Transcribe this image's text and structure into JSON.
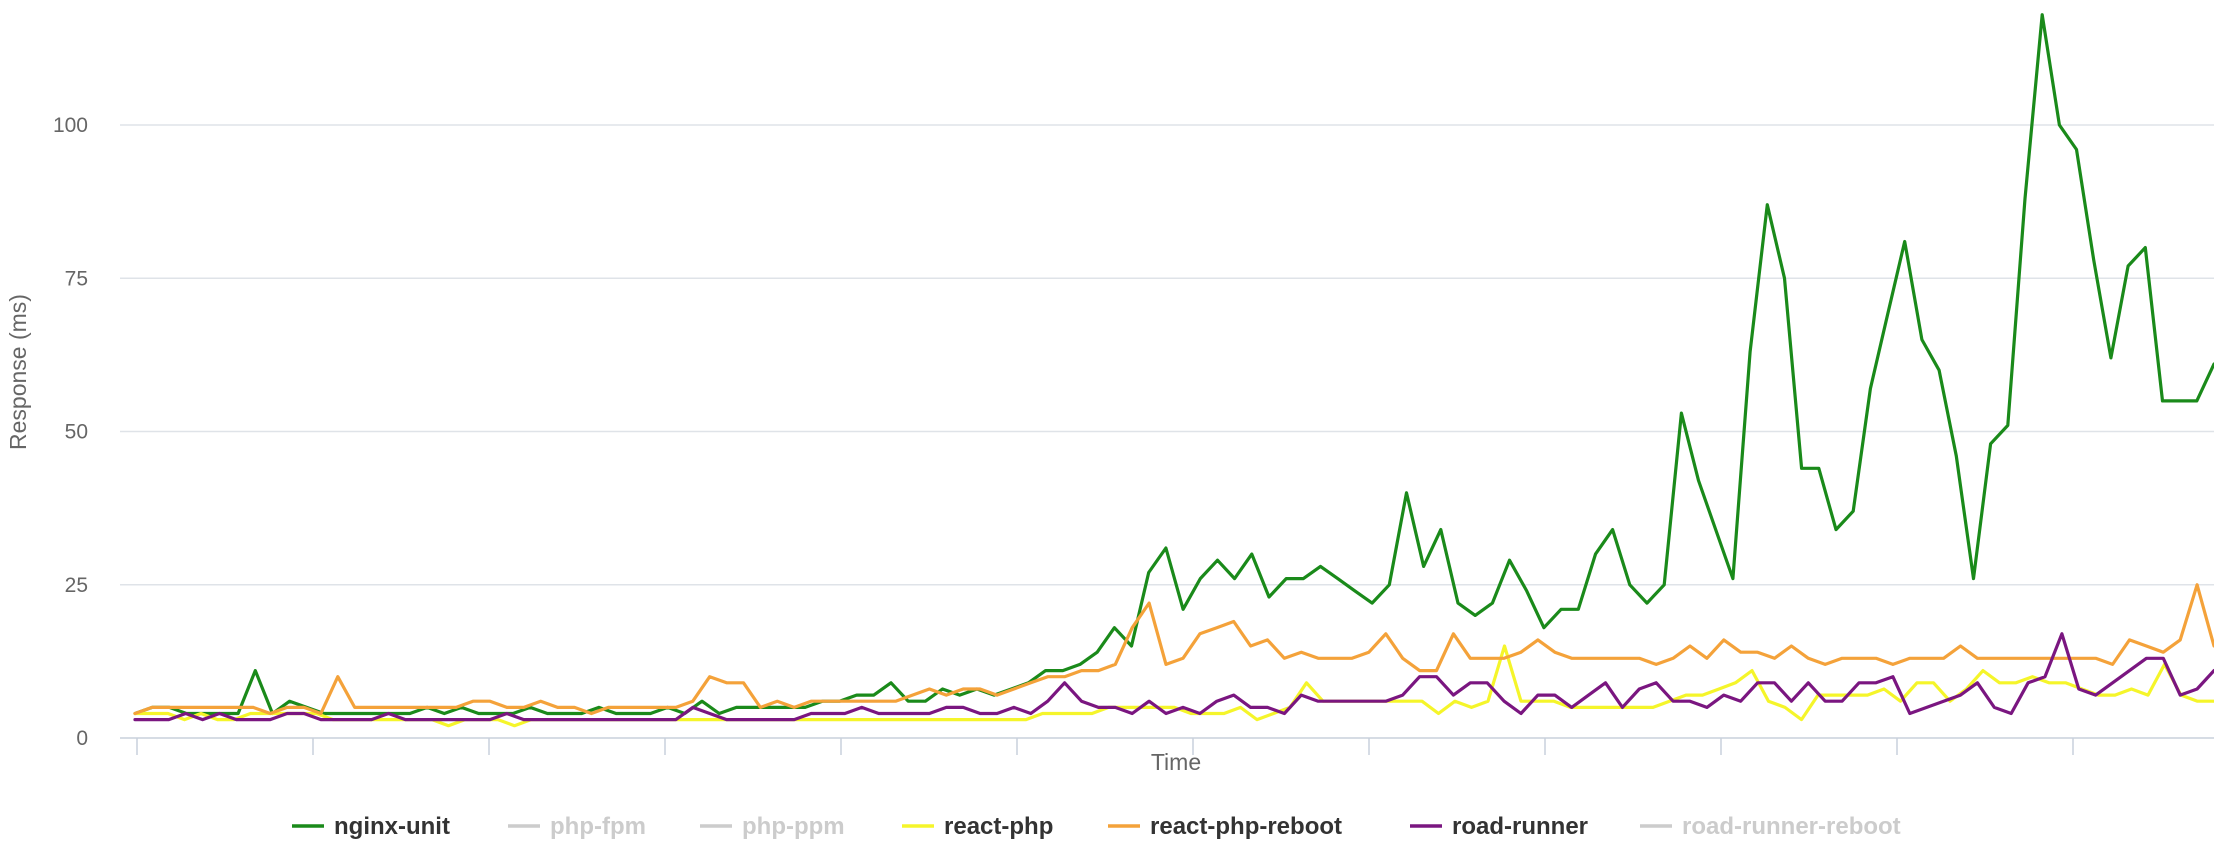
{
  "chart_data": {
    "type": "line",
    "title": "",
    "xlabel": "Time",
    "ylabel": "Response (ms)",
    "ylim": [
      0,
      120
    ],
    "yticks": [
      0,
      25,
      50,
      75,
      100
    ],
    "ytick_labels": [
      "0",
      "25",
      "50",
      "75",
      "100"
    ],
    "grid": true,
    "legend_position": "bottom",
    "series": [
      {
        "name": "nginx-unit",
        "color": "#1a8a1a",
        "visible": true,
        "values": [
          4,
          5,
          5,
          4,
          4,
          4,
          4,
          11,
          4,
          6,
          5,
          4,
          4,
          4,
          4,
          4,
          4,
          5,
          4,
          5,
          4,
          4,
          4,
          5,
          4,
          4,
          4,
          5,
          4,
          4,
          4,
          5,
          4,
          6,
          4,
          5,
          5,
          5,
          5,
          5,
          6,
          6,
          7,
          7,
          9,
          6,
          6,
          8,
          7,
          8,
          7,
          8,
          9,
          11,
          11,
          12,
          14,
          18,
          15,
          27,
          31,
          21,
          26,
          29,
          26,
          30,
          23,
          26,
          26,
          28,
          26,
          24,
          22,
          25,
          40,
          28,
          34,
          22,
          20,
          22,
          29,
          24,
          18,
          21,
          21,
          30,
          34,
          25,
          22,
          25,
          53,
          42,
          34,
          26,
          63,
          87,
          75,
          44,
          44,
          34,
          37,
          57,
          69,
          81,
          65,
          60,
          46,
          26,
          48,
          51,
          88,
          118,
          100,
          96,
          78,
          62,
          77,
          80,
          55,
          55,
          55,
          61
        ]
      },
      {
        "name": "php-fpm",
        "color": "#cccccc",
        "visible": false,
        "values": []
      },
      {
        "name": "php-ppm",
        "color": "#cccccc",
        "visible": false,
        "values": []
      },
      {
        "name": "react-php",
        "color": "#f5f52a",
        "visible": true,
        "values": [
          4,
          4,
          4,
          3,
          4,
          3,
          3,
          4,
          4,
          4,
          4,
          4,
          3,
          3,
          3,
          3,
          3,
          3,
          3,
          2,
          3,
          3,
          3,
          2,
          3,
          3,
          3,
          3,
          3,
          3,
          3,
          3,
          3,
          3,
          3,
          3,
          3,
          3,
          3,
          3,
          3,
          3,
          3,
          3,
          3,
          3,
          3,
          3,
          3,
          3,
          3,
          3,
          3,
          3,
          3,
          4,
          4,
          4,
          4,
          5,
          5,
          5,
          5,
          5,
          4,
          4,
          4,
          5,
          3,
          4,
          5,
          9,
          6,
          6,
          6,
          6,
          6,
          6,
          6,
          4,
          6,
          5,
          6,
          15,
          6,
          6,
          6,
          5,
          5,
          5,
          5,
          5,
          5,
          6,
          7,
          7,
          8,
          9,
          11,
          6,
          5,
          3,
          7,
          7,
          7,
          7,
          8,
          6,
          9,
          9,
          6,
          8,
          11,
          9,
          9,
          10,
          9,
          9,
          8,
          7,
          7,
          8,
          7,
          12,
          7,
          6,
          6
        ]
      },
      {
        "name": "react-php-reboot",
        "color": "#f4a23a",
        "visible": true,
        "values": [
          4,
          5,
          5,
          5,
          5,
          5,
          5,
          5,
          4,
          5,
          5,
          4,
          10,
          5,
          5,
          5,
          5,
          5,
          5,
          5,
          6,
          6,
          5,
          5,
          6,
          5,
          5,
          4,
          5,
          5,
          5,
          5,
          5,
          6,
          10,
          9,
          9,
          5,
          6,
          5,
          6,
          6,
          6,
          6,
          6,
          6,
          7,
          8,
          7,
          8,
          8,
          7,
          8,
          9,
          10,
          10,
          11,
          11,
          12,
          18,
          22,
          12,
          13,
          17,
          18,
          19,
          15,
          16,
          13,
          14,
          13,
          13,
          13,
          14,
          17,
          13,
          11,
          11,
          17,
          13,
          13,
          13,
          14,
          16,
          14,
          13,
          13,
          13,
          13,
          13,
          12,
          13,
          15,
          13,
          16,
          14,
          14,
          13,
          15,
          13,
          12,
          13,
          13,
          13,
          12,
          13,
          13,
          13,
          15,
          13,
          13,
          13,
          13,
          13,
          13,
          13,
          13,
          12,
          16,
          15,
          14,
          16,
          25,
          15
        ]
      },
      {
        "name": "road-runner",
        "color": "#7a1680",
        "visible": true,
        "values": [
          3,
          3,
          3,
          4,
          3,
          4,
          3,
          3,
          3,
          4,
          4,
          3,
          3,
          3,
          3,
          4,
          3,
          3,
          3,
          3,
          3,
          3,
          4,
          3,
          3,
          3,
          3,
          3,
          3,
          3,
          3,
          3,
          3,
          5,
          4,
          3,
          3,
          3,
          3,
          3,
          4,
          4,
          4,
          5,
          4,
          4,
          4,
          4,
          5,
          5,
          4,
          4,
          5,
          4,
          6,
          9,
          6,
          5,
          5,
          4,
          6,
          4,
          5,
          4,
          6,
          7,
          5,
          5,
          4,
          7,
          6,
          6,
          6,
          6,
          6,
          7,
          10,
          10,
          7,
          9,
          9,
          6,
          4,
          7,
          7,
          5,
          7,
          9,
          5,
          8,
          9,
          6,
          6,
          5,
          7,
          6,
          9,
          9,
          6,
          9,
          6,
          6,
          9,
          9,
          10,
          4,
          5,
          6,
          7,
          9,
          5,
          4,
          9,
          10,
          17,
          8,
          7,
          9,
          11,
          13,
          13,
          7,
          8,
          11
        ]
      },
      {
        "name": "road-runner-reboot",
        "color": "#cccccc",
        "visible": false,
        "values": []
      }
    ]
  }
}
